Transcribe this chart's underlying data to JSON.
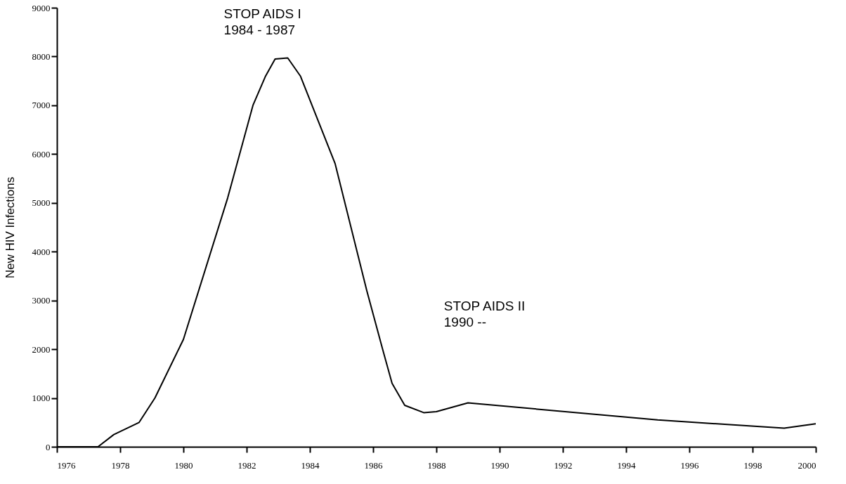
{
  "chart_data": {
    "type": "line",
    "ylabel": "New HIV Infections",
    "x": [
      1976,
      1977.3,
      1977.8,
      1978.6,
      1979.1,
      1980,
      1981.4,
      1982.2,
      1982.6,
      1982.9,
      1983.3,
      1983.7,
      1984.8,
      1985.8,
      1986.3,
      1986.6,
      1987,
      1987.6,
      1988,
      1989,
      1995,
      1999,
      2000
    ],
    "series": [
      {
        "color": "#000000",
        "values": [
          0,
          0,
          250,
          500,
          1000,
          2200,
          5100,
          7000,
          7600,
          7950,
          7970,
          7600,
          5800,
          3200,
          2000,
          1300,
          850,
          700,
          720,
          900,
          550,
          380,
          470
        ]
      }
    ],
    "xlim": [
      1976,
      2000
    ],
    "xticks": [
      1976,
      1978,
      1980,
      1982,
      1984,
      1986,
      1988,
      1990,
      1992,
      1994,
      1996,
      1998,
      2000
    ],
    "ylim": [
      0,
      9000
    ],
    "yticks": [
      0,
      1000,
      2000,
      3000,
      4000,
      5000,
      6000,
      7000,
      8000,
      9000
    ],
    "grid": false,
    "marker": "none",
    "line_style": "solid",
    "annotations": [
      "STOP AIDS I\n1984 - 1987",
      "STOP AIDS II\n1990 --"
    ]
  }
}
